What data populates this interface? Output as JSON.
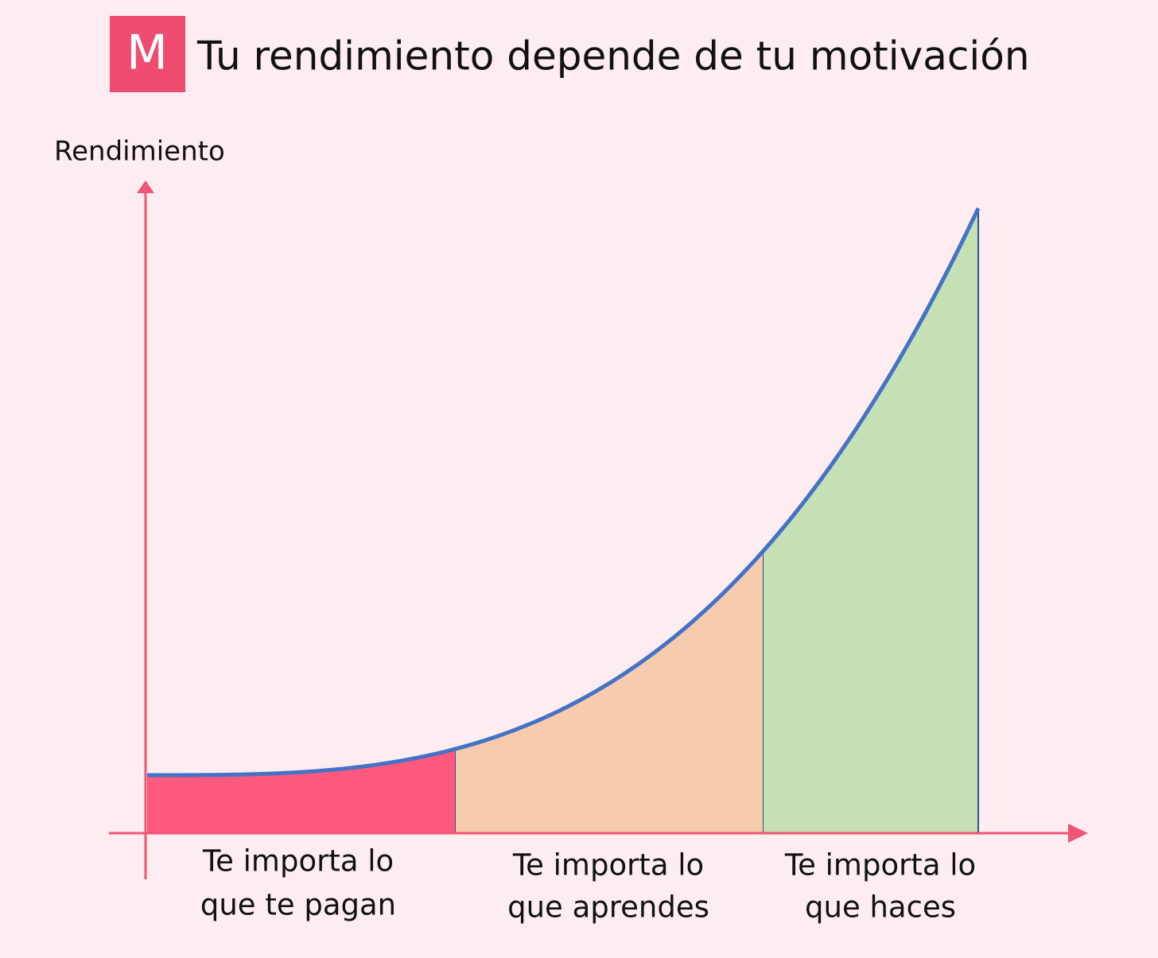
{
  "header": {
    "logo": "M",
    "title": "Tu rendimiento depende de tu motivación"
  },
  "axis": {
    "y_label": "Rendimiento"
  },
  "zones": [
    {
      "lines": [
        "Te importa lo",
        "que te pagan"
      ]
    },
    {
      "lines": [
        "Te importa lo",
        "que aprendes"
      ]
    },
    {
      "lines": [
        "Te importa lo",
        "que haces"
      ]
    }
  ]
}
